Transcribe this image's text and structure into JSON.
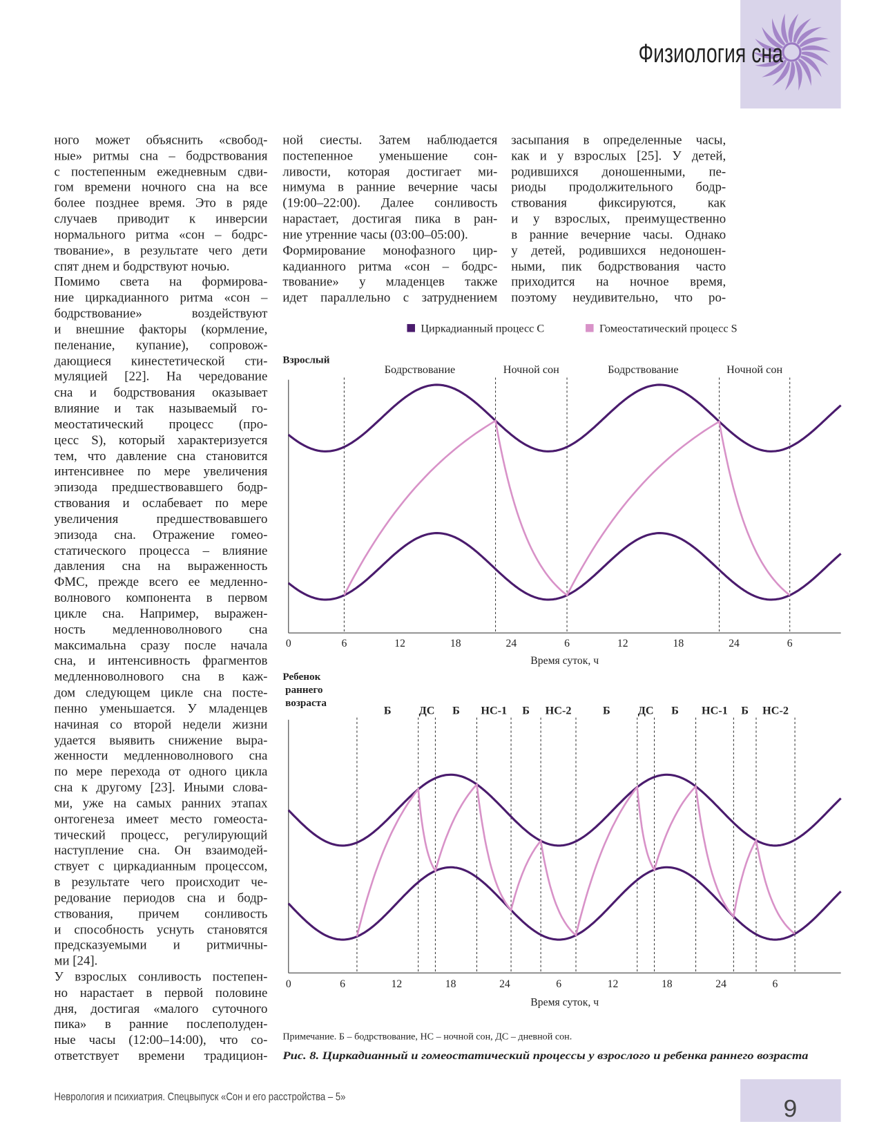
{
  "header": {
    "section": "Физиология сна"
  },
  "columns": [
    {
      "paragraphs": [
        [
          "ного может объяснить «свобод-",
          "ные» ритмы сна – бодрствования",
          "с постепенным ежедневным сдви-",
          "гом времени ночного сна на все",
          "более позднее время. Это в ряде",
          "случаев приводит к инверсии",
          "нормального ритма «сон – бодрс-",
          "твование», в результате чего дети",
          "спят днем и бодрствуют ночью."
        ],
        [
          "Помимо света на формирова-",
          "ние циркадианного ритма «сон –",
          "бодрствование» воздействуют",
          "и внешние факторы (кормление,",
          "пеленание, купание), сопровож-",
          "дающиеся кинестетической сти-",
          "муляцией [22]. На чередование",
          "сна и бодрствования оказывает",
          "влияние и так называемый го-",
          "меостатический процесс (про-",
          "цесс S), который характеризуется",
          "тем, что давление сна становится",
          "интенсивнее по мере увеличения",
          "эпизода предшествовавшего бодр-",
          "ствования и ослабевает по мере",
          "увеличения предшествовавшего",
          "эпизода сна. Отражение гомео-",
          "статического процесса – влияние",
          "давления сна на выраженность",
          "ФМС, прежде всего ее медленно-",
          "волнового компонента в первом",
          "цикле сна. Например, выражен-",
          "ность медленноволнового сна",
          "максимальна сразу после начала",
          "сна, и интенсивность фрагментов",
          "медленноволнового сна в каж-",
          "дом следующем цикле сна посте-",
          "пенно уменьшается. У младенцев",
          "начиная со второй недели жизни",
          "удается выявить снижение выра-",
          "женности медленноволнового сна",
          "по мере перехода от одного цикла",
          "сна к другому [23]. Иными слова-",
          "ми, уже на самых ранних этапах",
          "онтогенеза имеет место гомеоста-",
          "тический процесс, регулирующий",
          "наступление сна. Он взаимодей-",
          "ствует с циркадианным процессом,",
          "в результате чего происходит че-",
          "редование периодов сна и бодр-",
          "ствования, причем сонливость",
          "и способность уснуть становятся",
          "предсказуемыми и ритмичны-",
          "ми [24]."
        ],
        [
          "У взрослых сонливость постепен-",
          "но нарастает в первой половине",
          "дня, достигая «малого суточного",
          "пика» в ранние послеполуден-",
          "ные часы (12:00–14:00), что со-",
          "ответствует времени традицион-"
        ]
      ]
    },
    {
      "paragraphs": [
        [
          "ной сиесты. Затем наблюдается",
          "постепенное уменьшение сон-",
          "ливости, которая достигает ми-",
          "нимума в ранние вечерние часы",
          "(19:00–22:00). Далее сонливость",
          "нарастает, достигая пика в ран-",
          "ние утренние часы (03:00–05:00)."
        ],
        [
          "Формирование монофазного цир-",
          "кадианного ритма «сон – бодрс-",
          "твование» у младенцев также",
          "идет параллельно с затруднением"
        ]
      ]
    },
    {
      "paragraphs": [
        [
          "засыпания в определенные часы,",
          "как и у взрослых [25]. У детей,",
          "родившихся доношенными, пе-",
          "риоды продолжительного бодр-",
          "ствования фиксируются, как",
          "и у взрослых, преимущественно",
          "в ранние вечерние часы. Однако",
          "у детей, родившихся недоношен-",
          "ными, пик бодрствования часто",
          "приходится на ночное время,",
          "поэтому неудивительно, что ро-"
        ]
      ]
    }
  ],
  "figure": {
    "legend": [
      {
        "name": "Циркадианный процесс С",
        "color": "#4a1b6d"
      },
      {
        "name": "Гомеостатический процесс S",
        "color": "#d892c8"
      }
    ],
    "note": "Примечание. Б – бодрствование, НС – ночной сон, ДС – дневной сон.",
    "caption": "Рис. 8. Циркадианный и гомеостатический процессы у взрослого и ребенка раннего возраста"
  },
  "chart_data": [
    {
      "type": "line",
      "title": "Взрослый",
      "xlabel": "Время суток, ч",
      "xlim": [
        0,
        59.5
      ],
      "xticks": [
        0,
        6,
        12,
        18,
        24,
        {
          "value": 30,
          "label": "6"
        },
        {
          "value": 36,
          "label": "12"
        },
        {
          "value": 42,
          "label": "18"
        },
        {
          "value": 48,
          "label": "24"
        },
        {
          "value": 54,
          "label": "6"
        }
      ],
      "phase_labels": [
        "Бодрствование",
        "Ночной сон",
        "Бодрствование",
        "Ночной сон"
      ],
      "boundaries": [
        6,
        22.3,
        30,
        46.4,
        54
      ]
    },
    {
      "type": "line",
      "title": "Ребенок раннего возраста",
      "xlabel": "Время суток, ч",
      "xlim": [
        0,
        61.3
      ],
      "xticks": [
        0,
        6,
        12,
        18,
        24,
        {
          "value": 30,
          "label": "6"
        },
        {
          "value": 36,
          "label": "12"
        },
        {
          "value": 42,
          "label": "18"
        },
        {
          "value": 48,
          "label": "24"
        },
        {
          "value": 54,
          "label": "6"
        }
      ],
      "phase_labels": [
        "Б",
        "ДС",
        "Б",
        "НС-1",
        "Б",
        "НС-2",
        "Б",
        "ДС",
        "Б",
        "НС-1",
        "Б",
        "НС-2"
      ],
      "boundaries": [
        7.6,
        14.4,
        16.3,
        20.9,
        24.7,
        28,
        31.9,
        38.7,
        40.6,
        45.2,
        49.4,
        51.9,
        56.2
      ]
    }
  ],
  "footer": {
    "journal": "Неврология и психиатрия. Спецвыпуск «Сон и его расстройства – 5»",
    "page": "9"
  }
}
